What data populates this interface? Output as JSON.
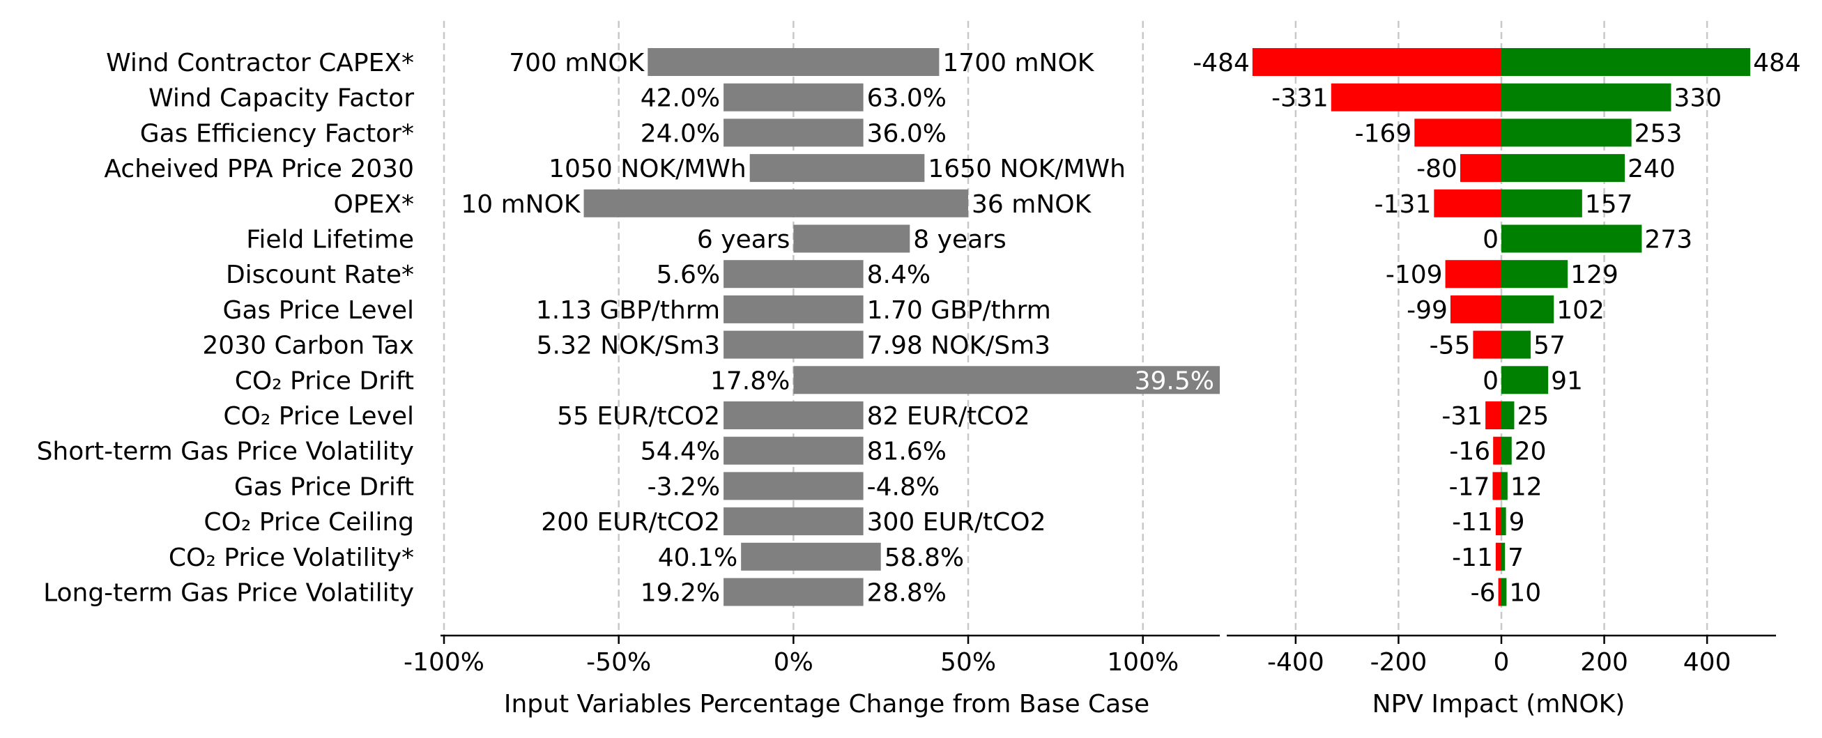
{
  "chart_data": [
    {
      "type": "bar",
      "orientation": "horizontal",
      "variables": [
        "Wind Contractor CAPEX*",
        "Wind Capacity Factor",
        "Gas Efficiency Factor*",
        "Acheived PPA Price 2030",
        "OPEX*",
        "Field Lifetime",
        "Discount Rate*",
        "Gas Price Level",
        "2030 Carbon Tax",
        "CO₂ Price Drift",
        "CO₂ Price Level",
        "Short-term Gas Price Volatility",
        "Gas Price Drift",
        "CO₂ Price Ceiling",
        "CO₂ Price Volatility*",
        "Long-term Gas Price Volatility"
      ],
      "pct_low": [
        -41.7,
        -20,
        -20,
        -12.5,
        -60,
        0,
        -20,
        -20,
        -20,
        0,
        -20,
        -20,
        -20,
        -20,
        -15,
        -20
      ],
      "pct_high": [
        41.7,
        20,
        20,
        37.5,
        50,
        33.3,
        20,
        20,
        20,
        122,
        20,
        20,
        20,
        20,
        25,
        20
      ],
      "low_labels": [
        "700 mNOK",
        "42.0%",
        "24.0%",
        "1050 NOK/MWh",
        "10 mNOK",
        "6 years",
        "5.6%",
        "1.13 GBP/thrm",
        "5.32 NOK/Sm3",
        "17.8%",
        "55 EUR/tCO2",
        "54.4%",
        "-3.2%",
        "200 EUR/tCO2",
        "40.1%",
        "19.2%"
      ],
      "high_labels": [
        "1700 mNOK",
        "63.0%",
        "36.0%",
        "1650 NOK/MWh",
        "36 mNOK",
        "8 years",
        "8.4%",
        "1.70 GBP/thrm",
        "7.98 NOK/Sm3",
        "39.5%",
        "82 EUR/tCO2",
        "81.6%",
        "-4.8%",
        "300 EUR/tCO2",
        "58.8%",
        "28.8%"
      ],
      "xlabel": "Input Variables Percentage Change from Base Case",
      "xticks": [
        "-100%",
        "-50%",
        "0%",
        "50%",
        "100%"
      ],
      "xtick_values": [
        -100,
        -50,
        0,
        50,
        100
      ],
      "xlim": [
        -101,
        122
      ],
      "bar_color": "#808080",
      "grid": "vertical dashed"
    },
    {
      "type": "bar",
      "orientation": "horizontal",
      "neg_values": [
        -484,
        -331,
        -169,
        -80,
        -131,
        0,
        -109,
        -99,
        -55,
        0,
        -31,
        -16,
        -17,
        -11,
        -11,
        -6
      ],
      "pos_values": [
        484,
        330,
        253,
        240,
        157,
        273,
        129,
        102,
        57,
        91,
        25,
        20,
        12,
        9,
        7,
        10
      ],
      "xlabel": "NPV Impact (mNOK)",
      "xticks": [
        "-400",
        "-200",
        "0",
        "200",
        "400"
      ],
      "xtick_values": [
        -400,
        -200,
        0,
        200,
        400
      ],
      "xlim": [
        -534,
        534
      ],
      "neg_color": "#ff0000",
      "pos_color": "#008000",
      "grid": "vertical dashed"
    }
  ]
}
